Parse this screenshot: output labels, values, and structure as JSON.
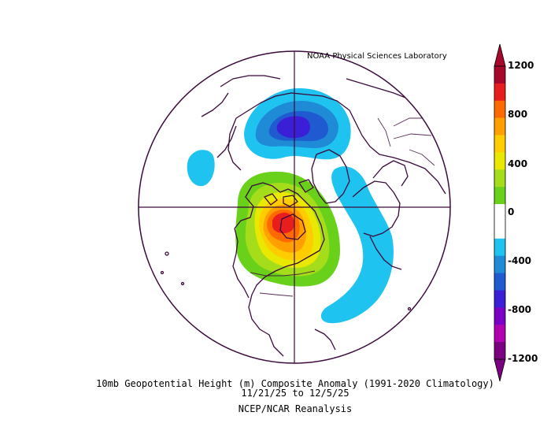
{
  "header": {
    "lab": "NOAA Physical Sciences Laboratory"
  },
  "caption": {
    "line1": "10mb Geopotential Height (m) Composite Anomaly (1991-2020 Climatology)",
    "line2": "11/21/25  to 12/5/25",
    "line3": "NCEP/NCAR Reanalysis"
  },
  "colorbar": {
    "labels": [
      "1200",
      "800",
      "400",
      "0",
      "-400",
      "-800",
      "-1200"
    ],
    "colors": [
      "#a6072a",
      "#e81d1d",
      "#ff6a00",
      "#ffa000",
      "#ffcc00",
      "#e8e800",
      "#a6dd1a",
      "#6ad11a",
      "#ffffff",
      "#ffffff",
      "#1fc3f0",
      "#1f8ad6",
      "#1f5ad0",
      "#3a1fd6",
      "#7a00c8",
      "#b000b0",
      "#7a0080"
    ]
  },
  "chart_data": {
    "type": "heatmap",
    "title": "10mb Geopotential Height (m) Composite Anomaly (1991-2020 Climatology)",
    "period": "11/21/25  to 12/5/25",
    "source": "NCEP/NCAR Reanalysis",
    "units": "m",
    "projection": "polar-stereographic north",
    "color_scale": [
      -1200,
      -1000,
      -800,
      -600,
      -400,
      -300,
      -200,
      -100,
      0,
      100,
      200,
      300,
      400,
      600,
      800,
      1000,
      1200
    ],
    "features": [
      {
        "name": "positive-anomaly-center",
        "region": "Canadian Arctic / Hudson Bay",
        "peak_value": 1100
      },
      {
        "name": "negative-anomaly-center",
        "region": "Northern Siberia",
        "peak_value": -700
      },
      {
        "name": "negative-anomaly-band",
        "region": "North Atlantic",
        "peak_value": -400
      },
      {
        "name": "negative-anomaly-small",
        "region": "North Pacific",
        "peak_value": -400
      }
    ]
  }
}
